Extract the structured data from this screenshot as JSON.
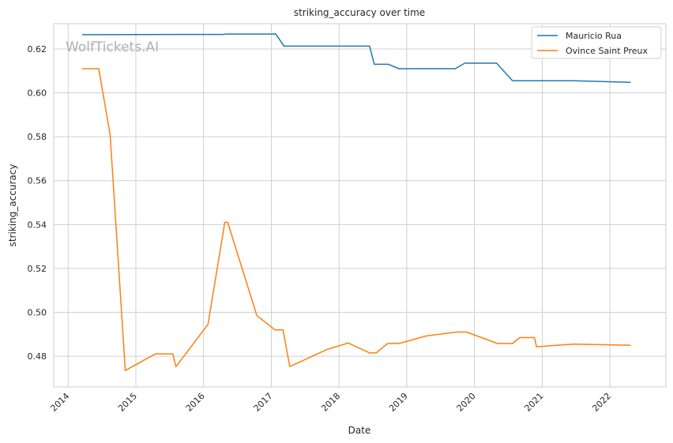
{
  "watermark": "WolfTickets.AI",
  "chart_data": {
    "type": "line",
    "title": "striking_accuracy over time",
    "xlabel": "Date",
    "ylabel": "striking_accuracy",
    "xlim": [
      "2013-10-15",
      "2022-10-30"
    ],
    "ylim": [
      0.466,
      0.6315
    ],
    "x_ticks": [
      "2014",
      "2015",
      "2016",
      "2017",
      "2018",
      "2019",
      "2020",
      "2021",
      "2022"
    ],
    "y_ticks": [
      0.48,
      0.5,
      0.52,
      0.54,
      0.56,
      0.58,
      0.6,
      0.62
    ],
    "grid": true,
    "legend_position": "top-right",
    "series": [
      {
        "name": "Mauricio Rua",
        "color": "#1f77b4",
        "points": [
          [
            "2014-03-20",
            0.6265
          ],
          [
            "2015-08-01",
            0.6266
          ],
          [
            "2016-04-15",
            0.6266
          ],
          [
            "2016-05-01",
            0.6268
          ],
          [
            "2017-01-25",
            0.6268
          ],
          [
            "2017-03-10",
            0.6213
          ],
          [
            "2018-06-15",
            0.6213
          ],
          [
            "2018-07-10",
            0.613
          ],
          [
            "2018-09-25",
            0.613
          ],
          [
            "2018-11-20",
            0.611
          ],
          [
            "2019-09-20",
            0.611
          ],
          [
            "2019-11-10",
            0.6135
          ],
          [
            "2020-04-30",
            0.6135
          ],
          [
            "2020-07-25",
            0.6055
          ],
          [
            "2021-06-15",
            0.6055
          ],
          [
            "2022-04-20",
            0.6048
          ]
        ]
      },
      {
        "name": "Ovince Saint Preux",
        "color": "#ff7f0e",
        "points": [
          [
            "2014-03-20",
            0.611
          ],
          [
            "2014-06-15",
            0.611
          ],
          [
            "2014-08-15",
            0.581
          ],
          [
            "2014-11-05",
            0.4735
          ],
          [
            "2015-04-15",
            0.481
          ],
          [
            "2015-07-20",
            0.481
          ],
          [
            "2015-08-05",
            0.4752
          ],
          [
            "2016-01-25",
            0.4945
          ],
          [
            "2016-04-25",
            0.541
          ],
          [
            "2016-05-10",
            0.541
          ],
          [
            "2016-10-15",
            0.4985
          ],
          [
            "2017-01-20",
            0.492
          ],
          [
            "2017-03-05",
            0.492
          ],
          [
            "2017-04-10",
            0.4753
          ],
          [
            "2017-11-01",
            0.4832
          ],
          [
            "2018-02-20",
            0.486
          ],
          [
            "2018-06-15",
            0.4815
          ],
          [
            "2018-07-20",
            0.4815
          ],
          [
            "2018-09-20",
            0.4858
          ],
          [
            "2018-11-20",
            0.4858
          ],
          [
            "2019-04-15",
            0.4892
          ],
          [
            "2019-09-25",
            0.491
          ],
          [
            "2019-11-20",
            0.491
          ],
          [
            "2020-05-05",
            0.4858
          ],
          [
            "2020-07-25",
            0.4858
          ],
          [
            "2020-09-01",
            0.4885
          ],
          [
            "2020-11-20",
            0.4885
          ],
          [
            "2020-12-01",
            0.4843
          ],
          [
            "2021-06-20",
            0.4855
          ],
          [
            "2022-04-20",
            0.485
          ]
        ]
      }
    ]
  }
}
